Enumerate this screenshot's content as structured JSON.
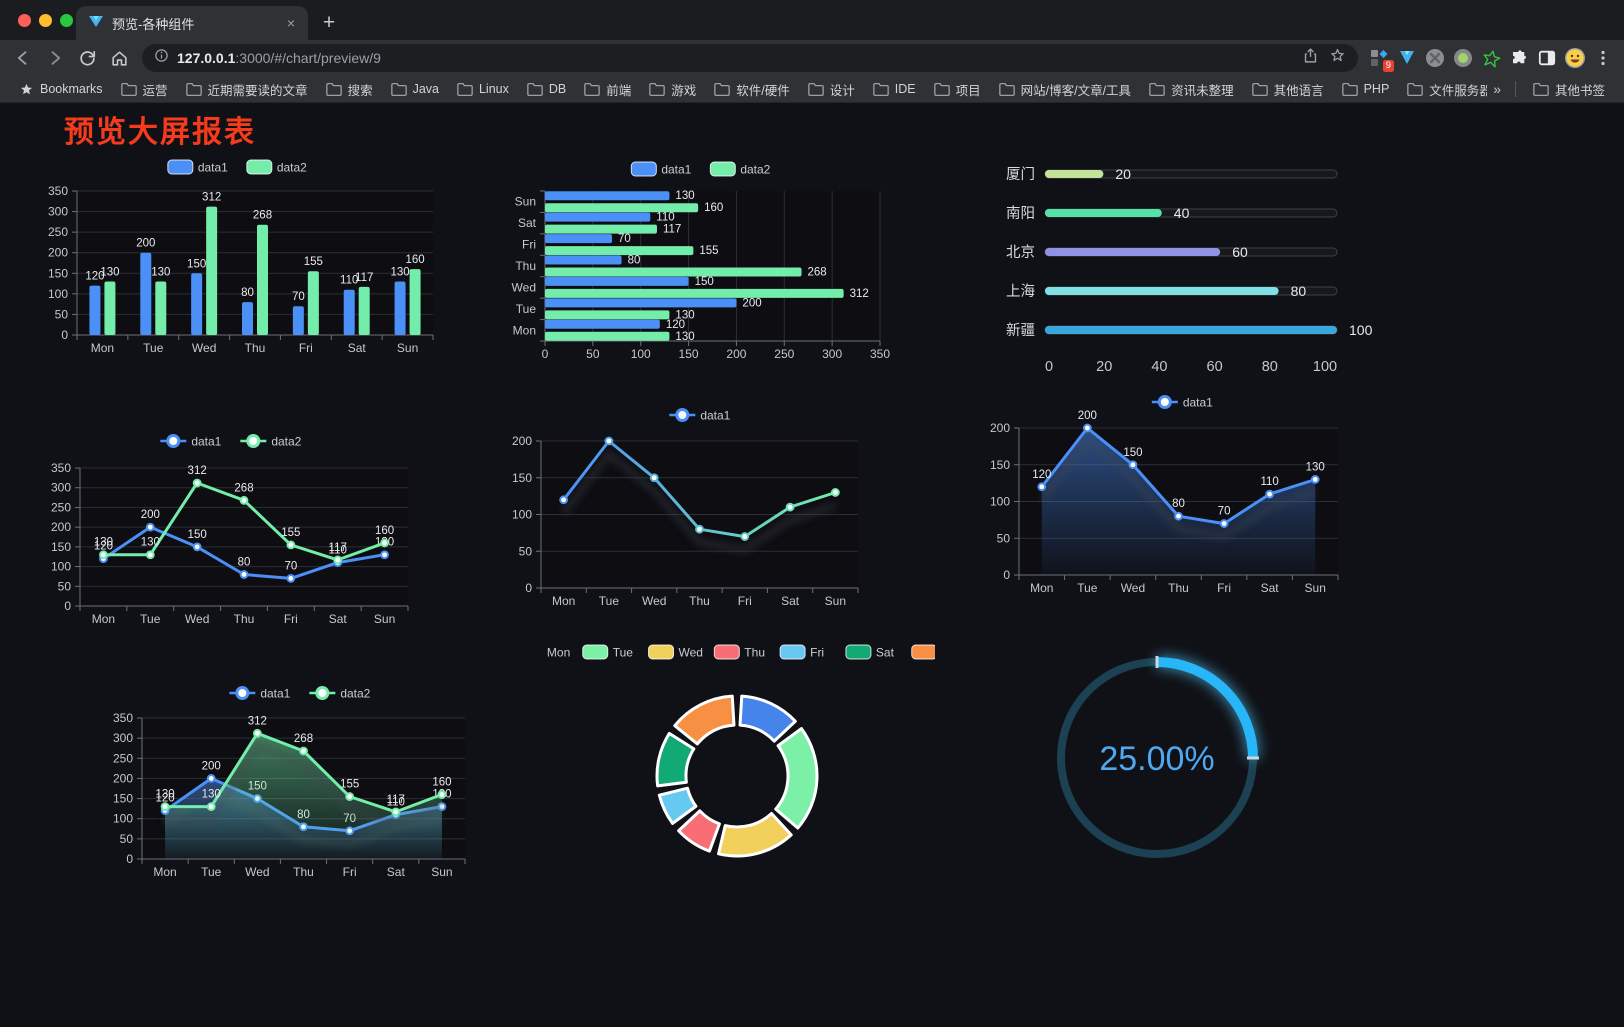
{
  "browser": {
    "tab": {
      "title": "预览-各种组件"
    },
    "url": {
      "host": "127.0.0.1",
      "rest": ":3000/#/chart/preview/9"
    },
    "bookmarks": {
      "root_label": "Bookmarks",
      "folders": [
        "运营",
        "近期需要读的文章",
        "搜索",
        "Java",
        "Linux",
        "DB",
        "前端",
        "游戏",
        "软件/硬件",
        "设计",
        "IDE",
        "项目",
        "网站/博客/文章/工具",
        "资讯未整理",
        "其他语言",
        "PHP",
        "文件服务器"
      ],
      "overflow": "»",
      "other": "其他书签"
    },
    "extension_badge": "9"
  },
  "page": {
    "title": "预览大屏报表",
    "title_color": "#f63b1d"
  },
  "chart_data": [
    {
      "type": "bar",
      "legend_style": "rect",
      "show_labels": true,
      "categories": [
        "Mon",
        "Tue",
        "Wed",
        "Thu",
        "Fri",
        "Sat",
        "Sun"
      ],
      "series": [
        {
          "name": "data1",
          "color": "#4a90f7",
          "values": [
            120,
            200,
            150,
            80,
            70,
            110,
            130
          ]
        },
        {
          "name": "data2",
          "color": "#73eda9",
          "values": [
            130,
            130,
            312,
            268,
            155,
            117,
            160
          ]
        }
      ],
      "ylim": [
        0,
        350
      ],
      "ytick_step": 50
    },
    {
      "type": "hbar",
      "legend_style": "rect",
      "show_labels": true,
      "categories": [
        "Mon",
        "Tue",
        "Wed",
        "Thu",
        "Fri",
        "Sat",
        "Sun"
      ],
      "series": [
        {
          "name": "data1",
          "color": "#4a90f7",
          "values": [
            120,
            200,
            150,
            80,
            70,
            110,
            130
          ]
        },
        {
          "name": "data2",
          "color": "#73eda9",
          "values": [
            130,
            130,
            312,
            268,
            155,
            117,
            160
          ]
        }
      ],
      "xlim": [
        0,
        350
      ],
      "xtick_step": 50
    },
    {
      "type": "progress",
      "max": 100,
      "ticks": [
        0,
        20,
        40,
        60,
        80,
        100
      ],
      "items": [
        {
          "label": "厦门",
          "value": 20,
          "color": "#c5e29a"
        },
        {
          "label": "南阳",
          "value": 40,
          "color": "#57e2a5"
        },
        {
          "label": "北京",
          "value": 60,
          "color": "#8e93e3"
        },
        {
          "label": "上海",
          "value": 80,
          "color": "#80e0e4"
        },
        {
          "label": "新疆",
          "value": 100,
          "color": "#39a7de"
        }
      ]
    },
    {
      "type": "line",
      "legend_style": "marker",
      "show_labels": true,
      "categories": [
        "Mon",
        "Tue",
        "Wed",
        "Thu",
        "Fri",
        "Sat",
        "Sun"
      ],
      "series": [
        {
          "name": "data1",
          "color": "#4a90f7",
          "values": [
            120,
            200,
            150,
            80,
            70,
            110,
            130
          ]
        },
        {
          "name": "data2",
          "color": "#73eda9",
          "values": [
            130,
            130,
            312,
            268,
            155,
            117,
            160
          ]
        }
      ],
      "ylim": [
        0,
        350
      ],
      "ytick_step": 50
    },
    {
      "type": "line",
      "legend_style": "marker",
      "show_labels": false,
      "categories": [
        "Mon",
        "Tue",
        "Wed",
        "Thu",
        "Fri",
        "Sat",
        "Sun"
      ],
      "series": [
        {
          "name": "data1",
          "gradient": [
            "#4a90f7",
            "#73eda9"
          ],
          "values": [
            120,
            200,
            150,
            80,
            70,
            110,
            130
          ],
          "shadow": true
        }
      ],
      "ylim": [
        0,
        200
      ],
      "ytick_step": 50
    },
    {
      "type": "line",
      "legend_style": "marker",
      "show_labels": true,
      "categories": [
        "Mon",
        "Tue",
        "Wed",
        "Thu",
        "Fri",
        "Sat",
        "Sun"
      ],
      "series": [
        {
          "name": "data1",
          "color": "#4a90f7",
          "values": [
            120,
            200,
            150,
            80,
            70,
            110,
            130
          ],
          "area": true,
          "shadow": true
        }
      ],
      "ylim": [
        0,
        200
      ],
      "ytick_step": 50
    },
    {
      "type": "line",
      "legend_style": "marker",
      "show_labels": true,
      "categories": [
        "Mon",
        "Tue",
        "Wed",
        "Thu",
        "Fri",
        "Sat",
        "Sun"
      ],
      "series": [
        {
          "name": "data1",
          "color": "#4a90f7",
          "values": [
            120,
            200,
            150,
            80,
            70,
            110,
            130
          ],
          "area": true,
          "shadow": true
        },
        {
          "name": "data2",
          "color": "#73eda9",
          "values": [
            130,
            130,
            312,
            268,
            155,
            117,
            160
          ],
          "area": true,
          "shadow": true
        }
      ],
      "ylim": [
        0,
        350
      ],
      "ytick_step": 50
    },
    {
      "type": "pie",
      "legend": [
        "Mon",
        "Tue",
        "Wed",
        "Thu",
        "Fri",
        "Sat",
        "Sun"
      ],
      "values": [
        120,
        200,
        150,
        80,
        70,
        110,
        130
      ],
      "colors": [
        "#4584ea",
        "#7df0a8",
        "#f2d05c",
        "#f96d74",
        "#67c8f2",
        "#11a974",
        "#f79043"
      ]
    },
    {
      "type": "gauge",
      "value": 25,
      "display": "25.00%",
      "arc_color": "#27b6f7",
      "track_color": "#1c4152",
      "text_color": "#4da9f2"
    }
  ]
}
